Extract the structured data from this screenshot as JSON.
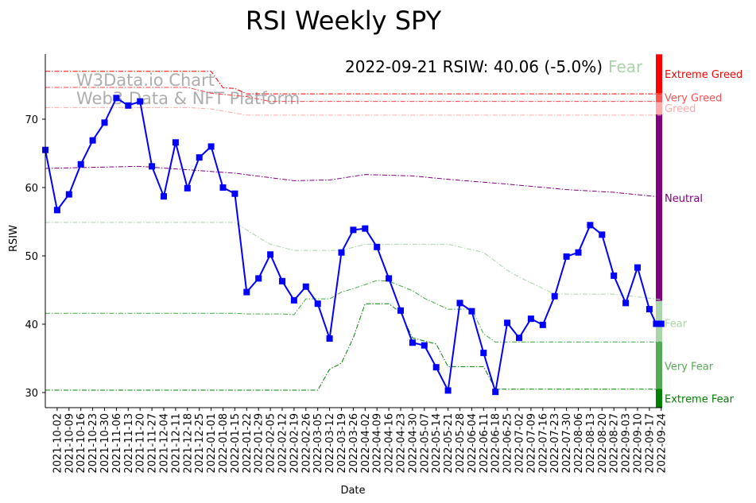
{
  "chart_data": {
    "type": "line",
    "title": "RSI Weekly SPY",
    "xlabel": "Date",
    "ylabel": "RSIW",
    "ylim": [
      27.8,
      79.5
    ],
    "yticks": [
      30,
      40,
      50,
      60,
      70
    ],
    "grid": false,
    "start_date": "2021-09-25",
    "xtick_labels": [
      "2021-10-02",
      "2021-10-09",
      "2021-10-16",
      "2021-10-23",
      "2021-10-30",
      "2021-11-06",
      "2021-11-13",
      "2021-11-20",
      "2021-11-27",
      "2021-12-04",
      "2021-12-11",
      "2021-12-18",
      "2021-12-25",
      "2022-01-01",
      "2022-01-08",
      "2022-01-15",
      "2022-01-22",
      "2022-01-29",
      "2022-02-05",
      "2022-02-12",
      "2022-02-19",
      "2022-02-26",
      "2022-03-05",
      "2022-03-12",
      "2022-03-19",
      "2022-03-26",
      "2022-04-02",
      "2022-04-09",
      "2022-04-16",
      "2022-04-23",
      "2022-04-30",
      "2022-05-07",
      "2022-05-14",
      "2022-05-21",
      "2022-05-28",
      "2022-06-04",
      "2022-06-11",
      "2022-06-18",
      "2022-06-25",
      "2022-07-02",
      "2022-07-09",
      "2022-07-16",
      "2022-07-23",
      "2022-07-30",
      "2022-08-06",
      "2022-08-13",
      "2022-08-20",
      "2022-08-27",
      "2022-09-03",
      "2022-09-10",
      "2022-09-17",
      "2022-09-24"
    ],
    "series": [
      {
        "name": "RSIW",
        "color": "#0000ff",
        "x": [
          "2021-09-25",
          "2021-10-02",
          "2021-10-09",
          "2021-10-16",
          "2021-10-23",
          "2021-10-30",
          "2021-11-06",
          "2021-11-13",
          "2021-11-20",
          "2021-11-27",
          "2021-12-04",
          "2021-12-11",
          "2021-12-18",
          "2021-12-25",
          "2022-01-01",
          "2022-01-08",
          "2022-01-15",
          "2022-01-22",
          "2022-01-29",
          "2022-02-05",
          "2022-02-12",
          "2022-02-19",
          "2022-02-26",
          "2022-03-05",
          "2022-03-12",
          "2022-03-19",
          "2022-03-26",
          "2022-04-02",
          "2022-04-09",
          "2022-04-16",
          "2022-04-23",
          "2022-04-30",
          "2022-05-07",
          "2022-05-14",
          "2022-05-21",
          "2022-05-28",
          "2022-06-04",
          "2022-06-11",
          "2022-06-18",
          "2022-06-25",
          "2022-07-02",
          "2022-07-09",
          "2022-07-16",
          "2022-07-23",
          "2022-07-30",
          "2022-08-06",
          "2022-08-13",
          "2022-08-20",
          "2022-08-27",
          "2022-09-03",
          "2022-09-10",
          "2022-09-17",
          "2022-09-21",
          "2022-09-24"
        ],
        "values": [
          65.5,
          56.7,
          59.0,
          63.4,
          66.9,
          69.5,
          73.1,
          72.0,
          72.6,
          63.1,
          58.7,
          66.6,
          59.9,
          64.4,
          66.0,
          60.0,
          59.1,
          44.7,
          46.7,
          50.2,
          46.3,
          43.5,
          45.5,
          43.0,
          37.9,
          50.5,
          53.8,
          54.0,
          51.3,
          46.7,
          42.0,
          37.3,
          36.9,
          33.7,
          30.3,
          43.1,
          41.9,
          35.8,
          30.1,
          40.2,
          38.0,
          40.8,
          39.9,
          44.1,
          49.9,
          50.5,
          54.5,
          53.1,
          47.1,
          43.1,
          48.3,
          42.2,
          40.06,
          40.06
        ]
      }
    ],
    "thresholds": [
      {
        "name": "Extreme Greed",
        "color": "#ff0000",
        "points": [
          [
            0,
            77.0
          ],
          [
            14,
            77.0
          ],
          [
            15,
            74.6
          ],
          [
            16,
            74.5
          ],
          [
            17,
            73.7
          ],
          [
            52,
            73.7
          ]
        ]
      },
      {
        "name": "Very Greed",
        "color": "#ff4040",
        "points": [
          [
            0,
            74.65
          ],
          [
            12,
            74.65
          ],
          [
            14,
            73.8
          ],
          [
            17,
            73.3
          ],
          [
            19,
            72.6
          ],
          [
            52,
            72.6
          ]
        ]
      },
      {
        "name": "Greed",
        "color": "#ffaaaa",
        "points": [
          [
            0,
            71.7
          ],
          [
            12,
            71.7
          ],
          [
            14,
            71.5
          ],
          [
            17,
            70.6
          ],
          [
            52,
            70.6
          ]
        ]
      },
      {
        "name": "Neutral",
        "color": "#800080",
        "points": [
          [
            0,
            62.8
          ],
          [
            8,
            63.1
          ],
          [
            12,
            62.6
          ],
          [
            16,
            62.1
          ],
          [
            21,
            61.0
          ],
          [
            24,
            61.1
          ],
          [
            27,
            61.9
          ],
          [
            31,
            61.7
          ],
          [
            34,
            61.2
          ],
          [
            39,
            60.5
          ],
          [
            44,
            59.7
          ],
          [
            48,
            59.3
          ],
          [
            52,
            58.6
          ]
        ]
      },
      {
        "name": "Fear",
        "color": "#aad4aa",
        "points": [
          [
            0,
            54.9
          ],
          [
            16,
            54.9
          ],
          [
            18,
            52.7
          ],
          [
            19,
            51.7
          ],
          [
            21,
            50.8
          ],
          [
            25,
            50.8
          ],
          [
            27,
            51.7
          ],
          [
            34,
            51.7
          ],
          [
            37,
            50.5
          ],
          [
            39,
            47.9
          ],
          [
            40,
            46.9
          ],
          [
            43,
            44.4
          ],
          [
            48,
            44.4
          ],
          [
            52,
            43.6
          ]
        ]
      },
      {
        "name": "Very Fear",
        "color": "#44aa44",
        "points": [
          [
            0,
            41.6
          ],
          [
            16,
            41.6
          ],
          [
            17,
            41.5
          ],
          [
            20,
            41.5
          ],
          [
            21,
            41.4
          ],
          [
            22,
            43.7
          ],
          [
            24,
            43.7
          ],
          [
            25,
            44.7
          ],
          [
            26,
            45.2
          ],
          [
            27,
            45.8
          ],
          [
            28,
            46.4
          ],
          [
            29,
            46.3
          ],
          [
            31,
            44.9
          ],
          [
            32,
            43.8
          ],
          [
            34,
            42.2
          ],
          [
            36,
            42.2
          ],
          [
            37,
            38.6
          ],
          [
            38,
            37.4
          ],
          [
            52,
            37.4
          ]
        ]
      },
      {
        "name": "Extreme Fear",
        "color": "#008000",
        "points": [
          [
            0,
            30.35
          ],
          [
            23,
            30.35
          ],
          [
            24,
            33.4
          ],
          [
            25,
            34.3
          ],
          [
            26,
            38.0
          ],
          [
            27,
            43.0
          ],
          [
            29,
            43.0
          ],
          [
            30,
            41.7
          ],
          [
            31,
            38.0
          ],
          [
            33,
            37.1
          ],
          [
            34,
            33.8
          ],
          [
            37,
            33.8
          ],
          [
            38,
            30.5
          ],
          [
            52,
            30.5
          ]
        ]
      }
    ],
    "bands": [
      {
        "label": "Extreme Greed",
        "color": "#ff0000",
        "from": 73.8,
        "to": 79.5
      },
      {
        "label": "Very Greed",
        "color": "#ff5555",
        "from": 72.5,
        "to": 73.8
      },
      {
        "label": "Greed",
        "color": "#ffaaaa",
        "from": 70.7,
        "to": 72.5
      },
      {
        "label": "Neutral",
        "color": "#800080",
        "from": 43.4,
        "to": 70.7
      },
      {
        "label": "Fear",
        "color": "#aad4aa",
        "from": 37.4,
        "to": 43.4
      },
      {
        "label": "Very Fear",
        "color": "#55aa55",
        "from": 30.5,
        "to": 37.4
      },
      {
        "label": "Extreme Fear",
        "color": "#008000",
        "from": 27.8,
        "to": 30.5
      }
    ],
    "band_labels": [
      {
        "label": "Extreme Greed",
        "color": "#ff0000",
        "value": 76.6
      },
      {
        "label": "Very Greed",
        "color": "#ff5050",
        "value": 73.2
      },
      {
        "label": "Greed",
        "color": "#ffaaaa",
        "value": 71.6
      },
      {
        "label": "Neutral",
        "color": "#800080",
        "value": 58.5
      },
      {
        "label": "Fear",
        "color": "#aad4aa",
        "value": 40.2
      },
      {
        "label": "Very Fear",
        "color": "#55aa55",
        "value": 33.9
      },
      {
        "label": "Extreme Fear",
        "color": "#008000",
        "value": 29.1
      }
    ],
    "annotation": {
      "text": "2022-09-21 RSIW: 40.06 (-5.0%)",
      "status": "Fear",
      "status_color": "#aad4aa"
    },
    "watermark": {
      "line1": "W3Data.io Chart",
      "line2": "Web3 Data & NFT Platform"
    }
  }
}
